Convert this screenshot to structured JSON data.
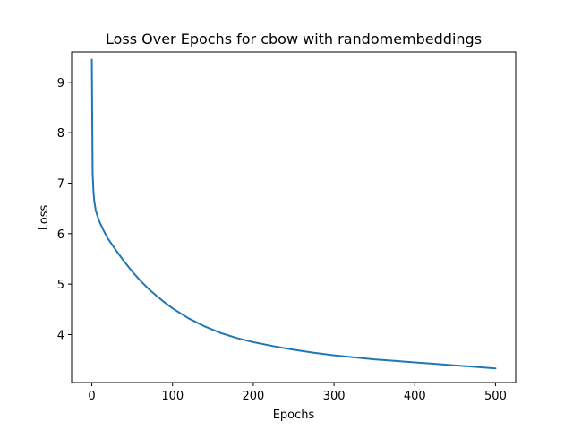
{
  "chart_data": {
    "type": "line",
    "title": "Loss Over Epochs for cbow with randomembeddings",
    "xlabel": "Epochs",
    "ylabel": "Loss",
    "xlim": [
      -25,
      525
    ],
    "ylim": [
      3.05,
      9.6
    ],
    "xticks": [
      0,
      100,
      200,
      300,
      400,
      500
    ],
    "yticks": [
      4,
      5,
      6,
      7,
      8,
      9
    ],
    "grid": false,
    "legend": "none",
    "series": [
      {
        "color": "#1f77b4",
        "x": [
          0,
          1,
          2,
          3,
          5,
          8,
          10,
          15,
          20,
          30,
          40,
          50,
          60,
          70,
          80,
          90,
          100,
          120,
          140,
          160,
          180,
          200,
          225,
          250,
          275,
          300,
          325,
          350,
          375,
          400,
          425,
          450,
          475,
          500
        ],
        "y": [
          9.45,
          7.2,
          6.85,
          6.65,
          6.45,
          6.3,
          6.22,
          6.05,
          5.9,
          5.67,
          5.45,
          5.25,
          5.07,
          4.91,
          4.77,
          4.64,
          4.52,
          4.32,
          4.16,
          4.03,
          3.93,
          3.85,
          3.77,
          3.7,
          3.64,
          3.59,
          3.55,
          3.51,
          3.48,
          3.45,
          3.42,
          3.39,
          3.36,
          3.33
        ]
      }
    ]
  }
}
